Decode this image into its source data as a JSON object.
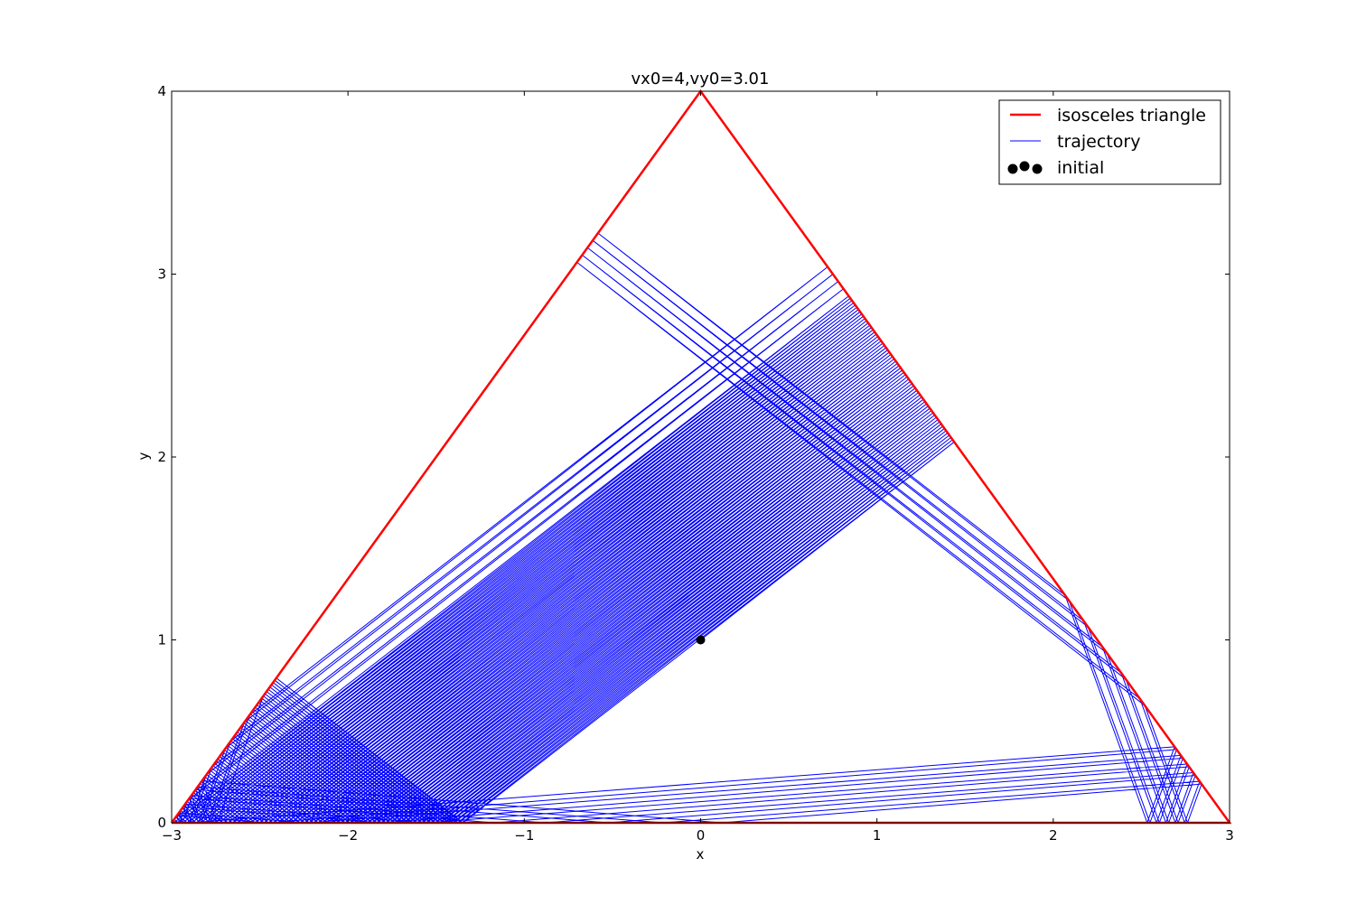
{
  "chart_data": {
    "type": "line",
    "title": "vx0=4,vy0=3.01",
    "xlabel": "x",
    "ylabel": "y",
    "xlim": [
      -3,
      3
    ],
    "ylim": [
      0,
      4
    ],
    "xticks": [
      -3,
      -2,
      -1,
      0,
      1,
      2,
      3
    ],
    "xtick_labels": [
      "−3",
      "−2",
      "−1",
      "0",
      "1",
      "2",
      "3"
    ],
    "yticks": [
      0,
      1,
      2,
      3,
      4
    ],
    "ytick_labels": [
      "0",
      "1",
      "2",
      "3",
      "4"
    ],
    "grid": false,
    "legend_position": "top-right",
    "series": [
      {
        "name": "isosceles triangle",
        "kind": "line",
        "color": "#ff0000",
        "x": [
          -3,
          0,
          3,
          -3
        ],
        "y": [
          0,
          4,
          0,
          0
        ]
      },
      {
        "name": "trajectory",
        "kind": "billiard",
        "color": "#0000ff",
        "start": [
          0,
          1
        ],
        "velocity": [
          4,
          3.01
        ],
        "bounces": 340
      },
      {
        "name": "initial",
        "kind": "scatter",
        "color": "#000000",
        "x": [
          0
        ],
        "y": [
          1
        ]
      }
    ]
  }
}
